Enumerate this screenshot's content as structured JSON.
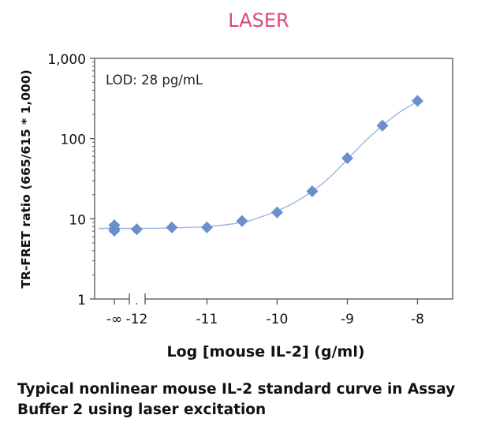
{
  "chart_data": {
    "type": "scatter",
    "title": "LASER",
    "title_color": "#e0457b",
    "xlabel": "Log [mouse IL-2] (g/ml)",
    "ylabel": "TR-FRET ratio (665/615 * 1,000)",
    "annotation": "LOD: 28 pg/mL",
    "y_scale": "log",
    "ylim": [
      1,
      1000
    ],
    "y_ticks": [
      {
        "value": 1,
        "label": "1"
      },
      {
        "value": 10,
        "label": "10"
      },
      {
        "value": 100,
        "label": "100"
      },
      {
        "value": 1000,
        "label": "1,000"
      }
    ],
    "xlim": [
      -12.6,
      -7.5
    ],
    "x_ticks": [
      {
        "value": -12,
        "label": "-12"
      },
      {
        "value": -11,
        "label": "-11"
      },
      {
        "value": -10,
        "label": "-10"
      },
      {
        "value": -9,
        "label": "-9"
      },
      {
        "value": -8,
        "label": "-8"
      }
    ],
    "x_axis_break": true,
    "neg_infinity_label": "-∞",
    "marker": "diamond",
    "marker_color": "#6b8fcb",
    "curve_color": "#9db6df",
    "series": [
      {
        "neg_infinity_points": [
          8.3,
          7.5,
          7.1
        ],
        "points": [
          {
            "x": -12.0,
            "y": 7.4
          },
          {
            "x": -11.5,
            "y": 7.8
          },
          {
            "x": -11.0,
            "y": 7.8
          },
          {
            "x": -10.5,
            "y": 9.4
          },
          {
            "x": -10.0,
            "y": 12.0
          },
          {
            "x": -9.5,
            "y": 22.0
          },
          {
            "x": -9.0,
            "y": 57.0
          },
          {
            "x": -8.5,
            "y": 145.0
          },
          {
            "x": -8.0,
            "y": 295.0
          }
        ]
      }
    ],
    "fit_curve": [
      [
        -12.55,
        7.6
      ],
      [
        -12.0,
        7.6
      ],
      [
        -11.5,
        7.7
      ],
      [
        -11.0,
        8.0
      ],
      [
        -10.5,
        9.0
      ],
      [
        -10.25,
        10.4
      ],
      [
        -10.0,
        12.5
      ],
      [
        -9.75,
        16.0
      ],
      [
        -9.5,
        22.0
      ],
      [
        -9.25,
        33.0
      ],
      [
        -9.0,
        55.0
      ],
      [
        -8.75,
        92.0
      ],
      [
        -8.5,
        145.0
      ],
      [
        -8.25,
        215.0
      ],
      [
        -8.0,
        290.0
      ]
    ]
  },
  "caption": {
    "line1": "Typical nonlinear mouse IL-2 standard curve in Assay",
    "line2": "Buffer 2 using laser excitation"
  }
}
